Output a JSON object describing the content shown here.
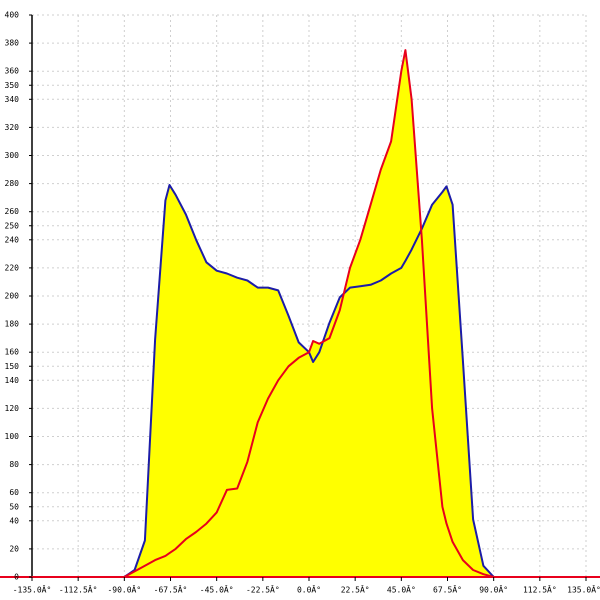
{
  "chart_data": {
    "type": "area",
    "x": [
      -95,
      -90,
      -85,
      -80,
      -75,
      -70,
      -68,
      -65,
      -60,
      -55,
      -50,
      -45,
      -40,
      -35,
      -30,
      -25,
      -20,
      -15,
      -10,
      -5,
      0,
      2,
      5,
      10,
      15,
      20,
      25,
      30,
      35,
      40,
      45,
      47,
      50,
      55,
      60,
      65,
      67,
      70,
      75,
      80,
      85,
      90,
      95
    ],
    "series": [
      {
        "color": "#1c1ca8",
        "values": [
          0,
          0,
          5,
          26,
          169,
          268,
          279,
          272,
          258,
          240,
          224,
          218,
          216,
          213,
          211,
          206,
          206,
          204,
          186,
          167,
          160,
          153,
          160,
          181,
          199,
          206,
          207,
          208,
          211,
          216,
          220,
          225,
          233,
          248,
          265,
          274,
          278,
          265,
          154,
          41,
          8,
          0,
          0
        ]
      },
      {
        "color": "#e8001c",
        "values": [
          0,
          0,
          4,
          8,
          12,
          15,
          17,
          20,
          27,
          32,
          38,
          46,
          62,
          63,
          82,
          110,
          127,
          140,
          150,
          156,
          160,
          168,
          166,
          170,
          190,
          220,
          240,
          265,
          290,
          310,
          360,
          375,
          340,
          240,
          120,
          50,
          38,
          25,
          12,
          5,
          2,
          0,
          0
        ]
      }
    ],
    "fill_color": "#ffff00",
    "xlim": [
      -135,
      135
    ],
    "xticks": [
      {
        "value": -135,
        "label": "-135.0Â°"
      },
      {
        "value": -112.5,
        "label": "-112.5Â°"
      },
      {
        "value": -90,
        "label": "-90.0Â°"
      },
      {
        "value": -67.5,
        "label": "-67.5Â°"
      },
      {
        "value": -45,
        "label": "-45.0Â°"
      },
      {
        "value": -22.5,
        "label": "-22.5Â°"
      },
      {
        "value": 0,
        "label": "0.0Â°"
      },
      {
        "value": 22.5,
        "label": "22.5Â°"
      },
      {
        "value": 45,
        "label": "45.0Â°"
      },
      {
        "value": 67.5,
        "label": "67.5Â°"
      },
      {
        "value": 90,
        "label": "90.0Â°"
      },
      {
        "value": 112.5,
        "label": "112.5Â°"
      },
      {
        "value": 135,
        "label": "135.0Â°"
      }
    ],
    "ylim": [
      0,
      400
    ],
    "yticks": [
      0,
      20,
      40,
      50,
      60,
      80,
      100,
      120,
      140,
      150,
      160,
      180,
      200,
      220,
      240,
      250,
      260,
      280,
      300,
      320,
      340,
      350,
      360,
      380,
      400
    ],
    "grid": true
  }
}
